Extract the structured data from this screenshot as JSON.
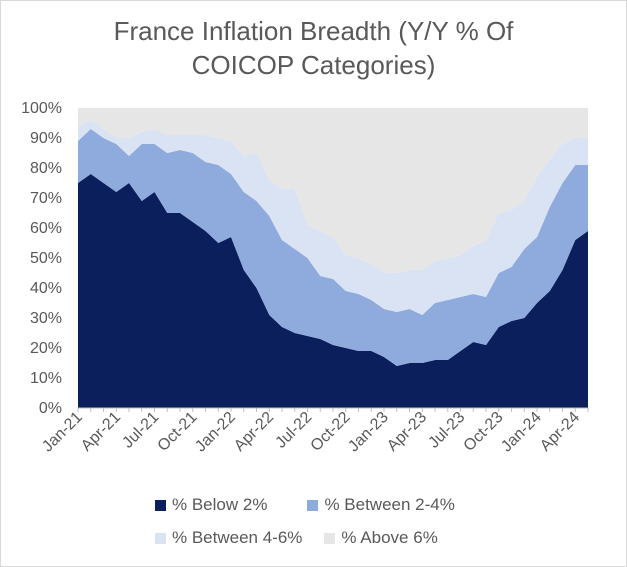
{
  "chart_data": {
    "type": "area",
    "stacked": true,
    "title_lines": [
      "France Inflation Breadth (Y/Y % Of",
      "COICOP Categories)"
    ],
    "ylim": [
      0,
      100
    ],
    "y_ticks": [
      "0%",
      "10%",
      "20%",
      "30%",
      "40%",
      "50%",
      "60%",
      "70%",
      "80%",
      "90%",
      "100%"
    ],
    "x_labels": [
      "Jan-21",
      "Apr-21",
      "Jul-21",
      "Oct-21",
      "Jan-22",
      "Apr-22",
      "Jul-22",
      "Oct-22",
      "Jan-23",
      "Apr-23",
      "Jul-23",
      "Oct-23",
      "Jan-24",
      "Apr-24"
    ],
    "x_label_positions": [
      0,
      3,
      6,
      9,
      12,
      15,
      18,
      21,
      24,
      27,
      30,
      33,
      36,
      39
    ],
    "months": [
      "Jan-21",
      "Feb-21",
      "Mar-21",
      "Apr-21",
      "May-21",
      "Jun-21",
      "Jul-21",
      "Aug-21",
      "Sep-21",
      "Oct-21",
      "Nov-21",
      "Dec-21",
      "Jan-22",
      "Feb-22",
      "Mar-22",
      "Apr-22",
      "May-22",
      "Jun-22",
      "Jul-22",
      "Aug-22",
      "Sep-22",
      "Oct-22",
      "Nov-22",
      "Dec-22",
      "Jan-23",
      "Feb-23",
      "Mar-23",
      "Apr-23",
      "May-23",
      "Jun-23",
      "Jul-23",
      "Aug-23",
      "Sep-23",
      "Oct-23",
      "Nov-23",
      "Dec-23",
      "Jan-24",
      "Feb-24",
      "Mar-24",
      "Apr-24",
      "May-24"
    ],
    "series": [
      {
        "name": "% Below 2%",
        "color": "#0a1f5c",
        "values": [
          75,
          78,
          75,
          72,
          75,
          69,
          72,
          65,
          65,
          62,
          59,
          55,
          57,
          46,
          40,
          31,
          27,
          25,
          24,
          23,
          21,
          20,
          19,
          19,
          17,
          14,
          15,
          15,
          16,
          16,
          19,
          22,
          21,
          27,
          29,
          30,
          35,
          39,
          46,
          56,
          59
        ]
      },
      {
        "name": "% Between 2-4%",
        "color": "#8faadc",
        "values": [
          14,
          15,
          15,
          16,
          9,
          19,
          16,
          20,
          21,
          23,
          23,
          26,
          21,
          26,
          29,
          33,
          29,
          28,
          26,
          21,
          22,
          19,
          19,
          17,
          16,
          18,
          18,
          16,
          19,
          20,
          18,
          16,
          16,
          18,
          18,
          23,
          22,
          28,
          29,
          25,
          22
        ]
      },
      {
        "name": "% Between 4-6%",
        "color": "#dae3f3",
        "values": [
          5,
          3,
          3,
          2,
          6,
          4,
          5,
          6,
          5,
          6,
          9,
          9,
          11,
          12,
          16,
          12,
          17,
          20,
          11,
          15,
          14,
          12,
          12,
          12,
          12,
          13,
          13,
          15,
          14,
          14,
          14,
          16,
          19,
          20,
          19,
          16,
          20,
          16,
          13,
          9,
          9
        ]
      },
      {
        "name": "% Above 6%",
        "color": "#e7e6e6",
        "values": [
          6,
          4,
          7,
          10,
          10,
          8,
          7,
          9,
          9,
          9,
          9,
          10,
          11,
          16,
          15,
          24,
          27,
          27,
          39,
          41,
          43,
          49,
          50,
          52,
          55,
          55,
          54,
          54,
          51,
          50,
          49,
          46,
          44,
          35,
          34,
          31,
          23,
          17,
          12,
          10,
          10
        ]
      }
    ],
    "legend_position": "bottom",
    "grid": false
  }
}
